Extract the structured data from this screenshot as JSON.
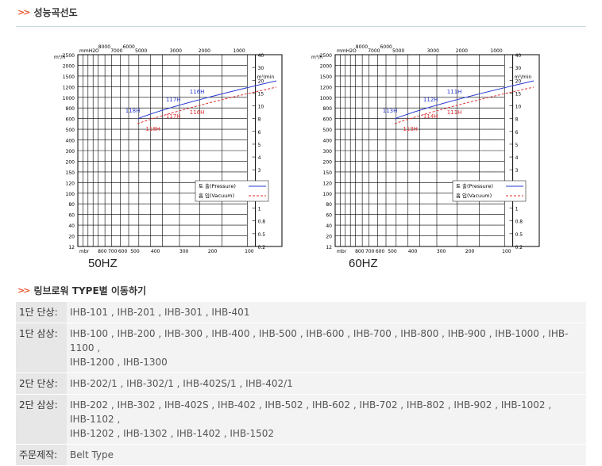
{
  "section1_title": "성능곡선도",
  "section2_title": "링브로워 TYPE별 이동하기",
  "charts": [
    {
      "freq_label": "50HZ",
      "left_unit": "m³/h",
      "right_unit": "m³/min",
      "left_ticks": [
        "2500",
        "2000",
        "1500",
        "1200",
        "1000",
        "800",
        "600",
        "500",
        "400",
        "300",
        "200",
        "150",
        "120",
        "100",
        "80",
        "60",
        "40",
        "20",
        "12"
      ],
      "right_ticks": [
        "40",
        "30",
        "20",
        "15",
        "10",
        "8",
        "6",
        "5",
        "4",
        "3",
        "2",
        "1.5",
        "1",
        "0.8",
        "0.5",
        "0.2"
      ],
      "top_scale_label": "mmH2O",
      "top_ticks": [
        "8000",
        "7000",
        "6000",
        "5000",
        "3000",
        "2000",
        "1000"
      ],
      "bottom_scale_label": "mbr",
      "bottom_ticks": [
        "800",
        "700",
        "600",
        "500",
        "400",
        "300",
        "200",
        "100"
      ],
      "curve_labels_pressure": [
        "118H",
        "117H",
        "116H"
      ],
      "curve_labels_vacuum": [
        "117H",
        "116H",
        "118H"
      ],
      "legend_pressure": "토 출(Pressure)",
      "legend_vacuum": "흡 입(Vacuum)"
    },
    {
      "freq_label": "60HZ",
      "left_unit": "m³/h",
      "right_unit": "m³/min",
      "left_ticks": [
        "2500",
        "2000",
        "1500",
        "1200",
        "1000",
        "800",
        "600",
        "500",
        "400",
        "300",
        "200",
        "150",
        "120",
        "100",
        "80",
        "60",
        "40",
        "20",
        "12"
      ],
      "right_ticks": [
        "40",
        "30",
        "20",
        "15",
        "10",
        "8",
        "6",
        "5",
        "4",
        "3",
        "2",
        "1.5",
        "1",
        "0.8",
        "0.5",
        "0.2"
      ],
      "top_scale_label": "mmH2O",
      "top_ticks": [
        "8000",
        "7000",
        "6000",
        "5000",
        "3000",
        "2000",
        "1000"
      ],
      "bottom_scale_label": "mbr",
      "bottom_ticks": [
        "800",
        "700",
        "600",
        "500",
        "400",
        "300",
        "200",
        "100"
      ],
      "curve_labels_pressure": [
        "113H",
        "112H",
        "111H"
      ],
      "curve_labels_vacuum": [
        "114H",
        "111H",
        "113H"
      ],
      "legend_pressure": "토 출(Pressure)",
      "legend_vacuum": "흡 입(Vacuum)"
    }
  ],
  "models": [
    {
      "key": "1단 단상:",
      "lines": [
        "IHB-101 , IHB-201 , IHB-301 , IHB-401"
      ]
    },
    {
      "key": "1단 삼상:",
      "lines": [
        "IHB-100 , IHB-200 , IHB-300 , IHB-400 , IHB-500 , IHB-600 , IHB-700 , IHB-800 , IHB-900 , IHB-1000 , IHB-",
        "1100 ,",
        "IHB-1200 , IHB-1300"
      ]
    },
    {
      "key": "2단 단상:",
      "lines": [
        "IHB-202/1 , IHB-302/1 , IHB-402S/1 , IHB-402/1"
      ]
    },
    {
      "key": "2단 삼상:",
      "lines": [
        "IHB-202 , IHB-302 , IHB-402S , IHB-402 , IHB-502 , IHB-602 , IHB-702 , IHB-802 , IHB-902 , IHB-1002 ,",
        "IHB-1102 ,",
        "IHB-1202 , IHB-1302 , IHB-1402 , IHB-1502"
      ]
    },
    {
      "key": "주문제작:",
      "lines": [
        "Belt Type"
      ]
    }
  ],
  "colors": {
    "arrow": "#e8552a",
    "pressure": "#2a3bd1",
    "vacuum": "#e03030",
    "key_bg": "#e7e7e7",
    "value_bg": "#f3f3f3"
  }
}
